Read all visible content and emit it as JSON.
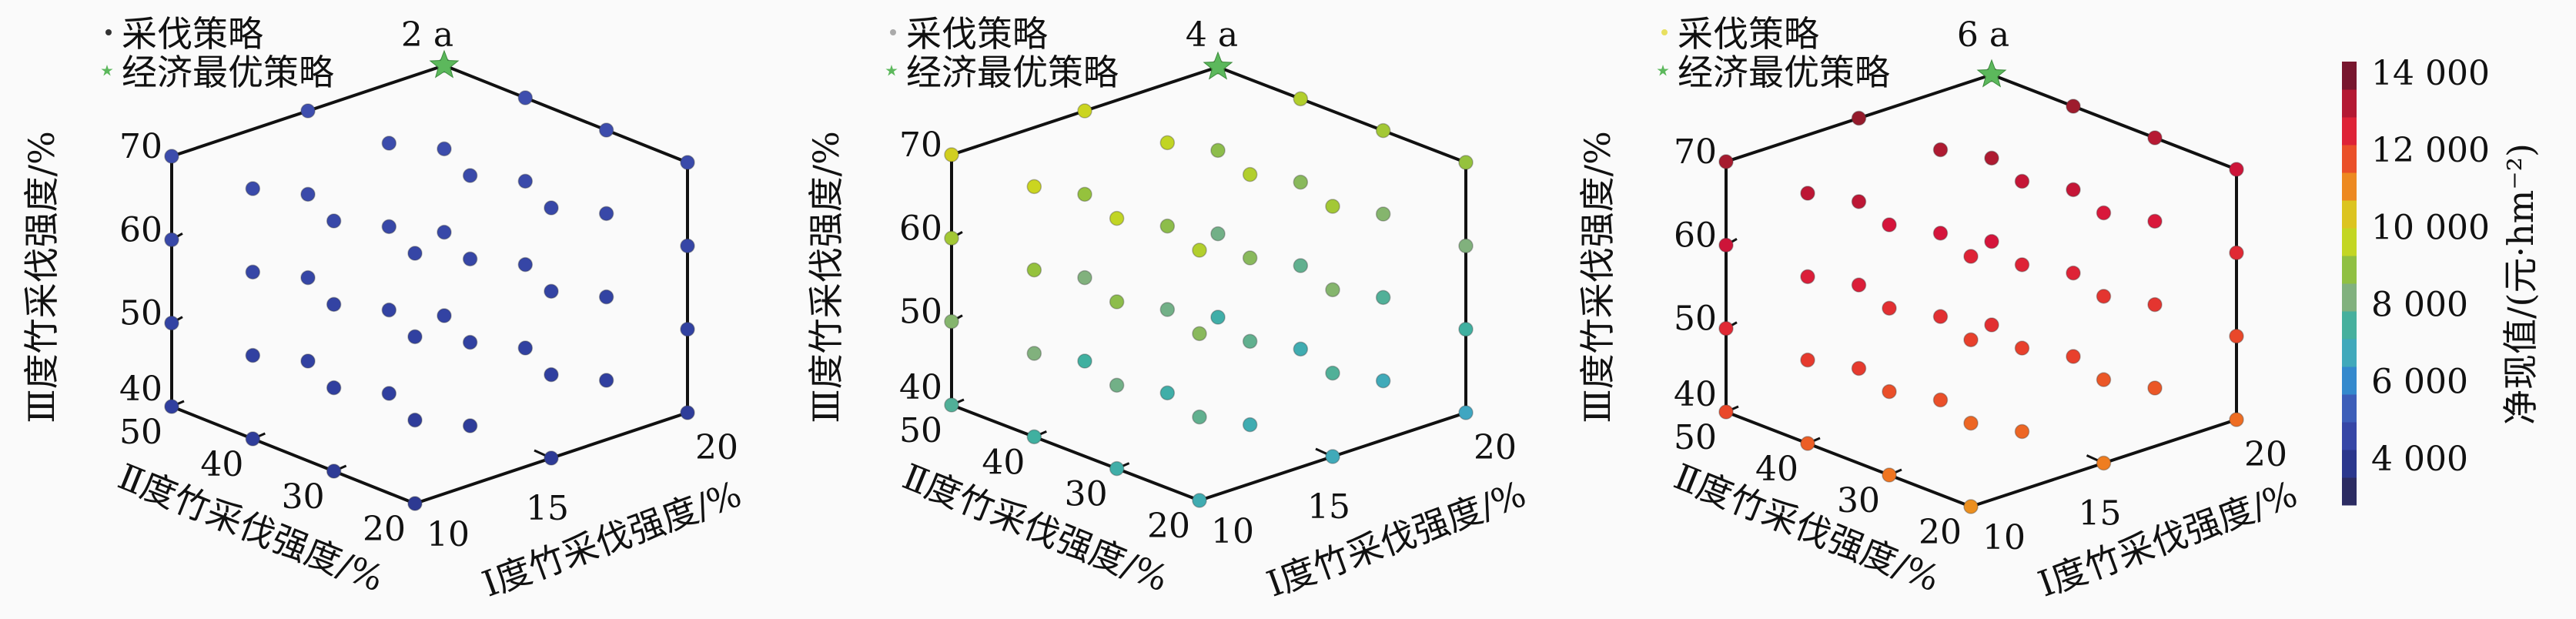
{
  "chart_data": {
    "type": "scatter",
    "dimensions": "3d",
    "legend": {
      "strategy": "采伐策略",
      "optimal": "经济最优策略",
      "placement": "top-left"
    },
    "axes": {
      "I": {
        "label": "I度竹采伐强度/%",
        "ticks": [
          "10",
          "15",
          "20"
        ],
        "range": [
          10,
          20
        ]
      },
      "II": {
        "label": "Ⅱ度竹采伐强度/%",
        "ticks": [
          "20",
          "30",
          "40",
          "50"
        ],
        "range": [
          20,
          50
        ]
      },
      "III": {
        "label": "Ⅲ度竹采伐强度/%",
        "ticks": [
          "40",
          "50",
          "60",
          "70"
        ],
        "range": [
          40,
          70
        ]
      }
    },
    "grid": {
      "I": [
        10,
        15,
        20
      ],
      "II": [
        20,
        30,
        40,
        50
      ],
      "III": [
        40,
        50,
        60,
        70
      ]
    },
    "value_order": "I outer, II middle, III inner",
    "optimal_point": {
      "I": 20,
      "II": 50,
      "III": 70,
      "color": "#5cb85c"
    },
    "panels": [
      {
        "title": "2 a",
        "values": [
          4000,
          4200,
          4400,
          4600,
          4100,
          4300,
          4500,
          4700,
          4200,
          4400,
          4600,
          4800,
          4300,
          4500,
          4700,
          4900,
          4100,
          4300,
          4500,
          4700,
          4200,
          4400,
          4600,
          4800,
          4300,
          4500,
          4700,
          4900,
          4400,
          4600,
          4800,
          5000,
          4200,
          4400,
          4600,
          4800,
          4300,
          4500,
          4700,
          4900,
          4400,
          4600,
          4800,
          5000,
          4500,
          4700,
          4900,
          5100
        ]
      },
      {
        "title": "4 a",
        "values": [
          7000,
          7800,
          8600,
          9400,
          7200,
          8000,
          8800,
          9600,
          7400,
          8200,
          9000,
          9800,
          7600,
          8400,
          9200,
          10000,
          6800,
          7600,
          8400,
          9200,
          7000,
          7800,
          8600,
          9400,
          7200,
          8000,
          8800,
          9600,
          7400,
          8200,
          9000,
          9800,
          6600,
          7400,
          8200,
          9000,
          6800,
          7600,
          8400,
          9200,
          7000,
          7800,
          8600,
          9400,
          7200,
          8000,
          8800,
          9600
        ]
      },
      {
        "title": "6 a",
        "values": [
          11000,
          11500,
          12000,
          12500,
          11300,
          11800,
          12300,
          12800,
          11600,
          12100,
          12600,
          13100,
          11900,
          12400,
          12900,
          13400,
          11200,
          11700,
          12200,
          12700,
          11500,
          12000,
          12500,
          13000,
          11800,
          12300,
          12800,
          13300,
          12100,
          12600,
          13100,
          13600,
          11400,
          11900,
          12400,
          12900,
          11700,
          12200,
          12700,
          13200,
          12000,
          12500,
          13000,
          13500,
          12300,
          12800,
          13300,
          13800
        ]
      }
    ],
    "colorbar": {
      "label": "净现值/(元·hm⁻²)",
      "ticks": [
        "4 000",
        "6 000",
        "8 000",
        "10 000",
        "12 000",
        "14 000"
      ],
      "tick_values": [
        4000,
        6000,
        8000,
        10000,
        12000,
        14000
      ],
      "range": [
        2800,
        14300
      ],
      "colormap": [
        "#302848",
        "#283080",
        "#3040a0",
        "#4050b0",
        "#3080d0",
        "#40a8c0",
        "#40b0a0",
        "#80b080",
        "#90c040",
        "#c8d820",
        "#e0c020",
        "#f07a20",
        "#e8402c",
        "#d8143c",
        "#9b1c2c",
        "#5a1030"
      ]
    }
  }
}
